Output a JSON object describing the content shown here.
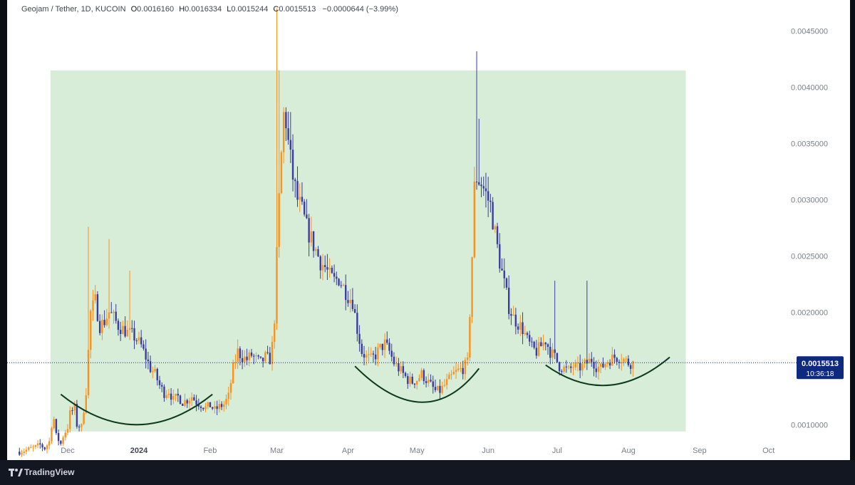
{
  "legend": {
    "symbol": "Geojam / Tether, 1D, KUCOIN",
    "open_label": "O",
    "open": "0.0016160",
    "high_label": "H",
    "high": "0.0016334",
    "low_label": "L",
    "low": "0.0015244",
    "close_label": "C",
    "close": "0.0015513",
    "change": "−0.0000644 (−3.99%)"
  },
  "footer": {
    "brand": "TradingView"
  },
  "colors": {
    "up": "#f7931e",
    "down": "#3c3c9e",
    "zone_fill": "#d7edd8",
    "curve": "#0d3b1e",
    "price_label_bg": "#0d2a80"
  },
  "chart_data": {
    "type": "candlestick",
    "series": [
      {
        "name": "Geojam / Tether",
        "data": []
      }
    ],
    "y_ticks": [
      "0.0045000",
      "0.0040000",
      "0.0035000",
      "0.0030000",
      "0.0025000",
      "0.0020000",
      "0.0010000"
    ],
    "ylim": [
      0.00085,
      0.0047
    ],
    "x_ticks": [
      "Dec",
      "2024",
      "Feb",
      "Mar",
      "Apr",
      "May",
      "Jun",
      "Jul",
      "Aug",
      "Sep",
      "Oct"
    ],
    "x_tick_days": [
      0,
      31,
      62,
      91,
      122,
      152,
      183,
      213,
      244,
      275,
      305
    ],
    "x_range_days": [
      -21,
      310
    ],
    "last_price": "0.0015513",
    "countdown": "10:36:18",
    "annotations": [
      {
        "type": "rectangle",
        "x_days": [
          -7.5,
          269
        ],
        "y": [
          0.00094,
          0.00415
        ]
      },
      {
        "type": "arc",
        "points": [
          [
            -3,
            0.00127
          ],
          [
            30,
            0.001
          ],
          [
            63,
            0.00127
          ]
        ]
      },
      {
        "type": "arc",
        "points": [
          [
            125,
            0.00152
          ],
          [
            154,
            0.0012
          ],
          [
            179,
            0.0015
          ]
        ]
      },
      {
        "type": "arc",
        "points": [
          [
            208,
            0.00153
          ],
          [
            235,
            0.00135
          ],
          [
            262,
            0.0016
          ]
        ]
      }
    ],
    "waypoints": [
      [
        -21,
        0.00076
      ],
      [
        -17,
        0.00078
      ],
      [
        -14,
        0.0008
      ],
      [
        -12,
        0.00082
      ],
      [
        -10,
        0.00079
      ],
      [
        -8,
        0.00085
      ],
      [
        -7,
        0.001
      ],
      [
        -6,
        0.00105
      ],
      [
        -5,
        0.0009
      ],
      [
        -3,
        0.00083
      ],
      [
        -2,
        0.0009
      ],
      [
        0,
        0.00098
      ],
      [
        1,
        0.0011
      ],
      [
        3,
        0.00115
      ],
      [
        4,
        0.001
      ],
      [
        6,
        0.00098
      ],
      [
        8,
        0.0013
      ],
      [
        10,
        0.002
      ],
      [
        12,
        0.0021
      ],
      [
        14,
        0.00188
      ],
      [
        16,
        0.00192
      ],
      [
        18,
        0.002
      ],
      [
        20,
        0.00195
      ],
      [
        22,
        0.00188
      ],
      [
        24,
        0.00185
      ],
      [
        26,
        0.00182
      ],
      [
        28,
        0.0018
      ],
      [
        30,
        0.00176
      ],
      [
        32,
        0.0017
      ],
      [
        34,
        0.0016
      ],
      [
        36,
        0.0015
      ],
      [
        38,
        0.00145
      ],
      [
        40,
        0.00135
      ],
      [
        42,
        0.00128
      ],
      [
        44,
        0.0013
      ],
      [
        46,
        0.00122
      ],
      [
        48,
        0.00125
      ],
      [
        50,
        0.0012
      ],
      [
        52,
        0.00122
      ],
      [
        54,
        0.00125
      ],
      [
        56,
        0.0012
      ],
      [
        58,
        0.00118
      ],
      [
        60,
        0.00115
      ],
      [
        62,
        0.00117
      ],
      [
        64,
        0.00113
      ],
      [
        66,
        0.00116
      ],
      [
        68,
        0.00118
      ],
      [
        70,
        0.00125
      ],
      [
        72,
        0.0015
      ],
      [
        74,
        0.00165
      ],
      [
        76,
        0.0016
      ],
      [
        78,
        0.00158
      ],
      [
        80,
        0.00162
      ],
      [
        82,
        0.00158
      ],
      [
        84,
        0.00155
      ],
      [
        86,
        0.0016
      ],
      [
        88,
        0.00158
      ],
      [
        89,
        0.0017
      ],
      [
        90,
        0.00195
      ],
      [
        91,
        0.0025
      ],
      [
        92,
        0.003
      ],
      [
        93,
        0.0034
      ],
      [
        94,
        0.00375
      ],
      [
        95,
        0.0037
      ],
      [
        96,
        0.0035
      ],
      [
        98,
        0.0032
      ],
      [
        100,
        0.003
      ],
      [
        102,
        0.0029
      ],
      [
        104,
        0.00275
      ],
      [
        106,
        0.00265
      ],
      [
        108,
        0.00255
      ],
      [
        110,
        0.00245
      ],
      [
        112,
        0.0024
      ],
      [
        114,
        0.00232
      ],
      [
        116,
        0.00228
      ],
      [
        118,
        0.0023
      ],
      [
        120,
        0.00222
      ],
      [
        122,
        0.00215
      ],
      [
        124,
        0.0021
      ],
      [
        126,
        0.00185
      ],
      [
        128,
        0.00165
      ],
      [
        130,
        0.0016
      ],
      [
        132,
        0.00158
      ],
      [
        134,
        0.00162
      ],
      [
        136,
        0.00168
      ],
      [
        138,
        0.00172
      ],
      [
        140,
        0.00165
      ],
      [
        142,
        0.00155
      ],
      [
        144,
        0.0015
      ],
      [
        146,
        0.00145
      ],
      [
        148,
        0.0014
      ],
      [
        150,
        0.00138
      ],
      [
        152,
        0.0014
      ],
      [
        154,
        0.00145
      ],
      [
        156,
        0.0014
      ],
      [
        158,
        0.00135
      ],
      [
        160,
        0.0013
      ],
      [
        162,
        0.0013
      ],
      [
        164,
        0.00135
      ],
      [
        166,
        0.0014
      ],
      [
        168,
        0.00145
      ],
      [
        170,
        0.00148
      ],
      [
        172,
        0.0015
      ],
      [
        174,
        0.00155
      ],
      [
        175,
        0.002
      ],
      [
        176,
        0.0025
      ],
      [
        177,
        0.0031
      ],
      [
        178,
        0.0032
      ],
      [
        180,
        0.00315
      ],
      [
        182,
        0.00305
      ],
      [
        184,
        0.00295
      ],
      [
        186,
        0.0027
      ],
      [
        188,
        0.00245
      ],
      [
        190,
        0.00225
      ],
      [
        192,
        0.00205
      ],
      [
        194,
        0.00195
      ],
      [
        196,
        0.0019
      ],
      [
        198,
        0.00185
      ],
      [
        200,
        0.00175
      ],
      [
        202,
        0.00168
      ],
      [
        204,
        0.00165
      ],
      [
        206,
        0.0017
      ],
      [
        208,
        0.00175
      ],
      [
        210,
        0.00165
      ],
      [
        212,
        0.0016
      ],
      [
        214,
        0.00152
      ],
      [
        216,
        0.0015
      ],
      [
        218,
        0.00148
      ],
      [
        220,
        0.00152
      ],
      [
        222,
        0.0015
      ],
      [
        224,
        0.00152
      ],
      [
        226,
        0.00155
      ],
      [
        228,
        0.00158
      ],
      [
        230,
        0.00152
      ],
      [
        232,
        0.0015
      ],
      [
        234,
        0.00155
      ],
      [
        236,
        0.00158
      ],
      [
        238,
        0.0016
      ],
      [
        240,
        0.0016
      ],
      [
        242,
        0.00158
      ],
      [
        244,
        0.00155
      ],
      [
        246,
        0.00155
      ]
    ],
    "spikes": [
      [
        9,
        0.00276
      ],
      [
        18,
        0.00265
      ],
      [
        27,
        0.00237
      ],
      [
        91,
        0.0047
      ],
      [
        92,
        0.00415
      ],
      [
        97,
        0.00378
      ],
      [
        178,
        0.00432
      ],
      [
        179,
        0.00372
      ],
      [
        212,
        0.00228
      ],
      [
        226,
        0.00228
      ],
      [
        229,
        0.0016
      ]
    ]
  }
}
